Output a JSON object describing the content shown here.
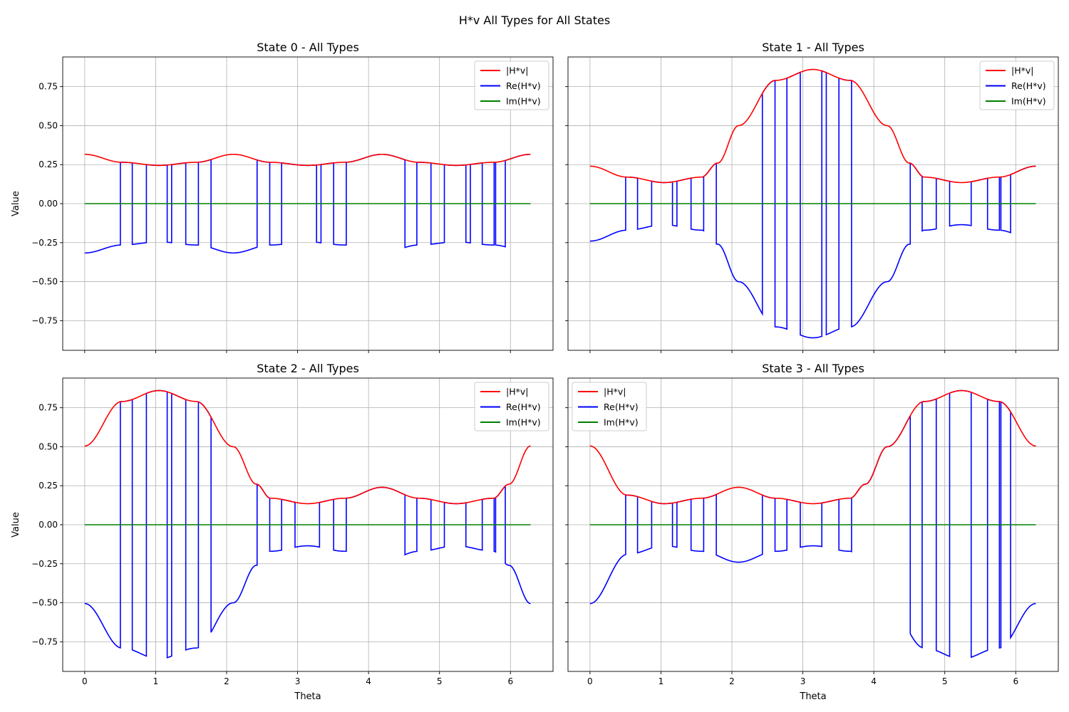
{
  "figure": {
    "title": "H*v All Types for All States"
  },
  "legend_swatch_colors": [
    "#ff0000",
    "#0000ff",
    "#008000"
  ],
  "chart_data": [
    {
      "type": "line",
      "title": "State 0 - All Types",
      "xlabel": "",
      "ylabel": "Value",
      "xlim": [
        -0.31,
        6.6
      ],
      "ylim": [
        -0.94,
        0.94
      ],
      "xticks": [
        0,
        1,
        2,
        3,
        4,
        5,
        6
      ],
      "yticks": [
        -0.75,
        -0.5,
        -0.25,
        0.0,
        0.25,
        0.5,
        0.75
      ],
      "xtick_labels_visible": false,
      "ytick_labels_visible": true,
      "grid": true,
      "legend": "top-right",
      "abs_peaks": [
        [
          0,
          0.316
        ],
        [
          0.524,
          0.265
        ],
        [
          1.047,
          0.245
        ],
        [
          1.571,
          0.265
        ],
        [
          2.094,
          0.316
        ],
        [
          2.618,
          0.265
        ],
        [
          3.142,
          0.245
        ],
        [
          3.665,
          0.265
        ],
        [
          4.189,
          0.316
        ],
        [
          4.712,
          0.265
        ],
        [
          5.236,
          0.245
        ],
        [
          5.76,
          0.265
        ],
        [
          6.283,
          0.316
        ]
      ],
      "sign_flip_theta": [
        0.5,
        0.67,
        0.86,
        1.16,
        1.22,
        1.42,
        1.6,
        1.78,
        2.42,
        2.6,
        2.77,
        3.26,
        3.32,
        3.5,
        3.68,
        4.51,
        4.68,
        4.87,
        5.06,
        5.37,
        5.43,
        5.6,
        5.77,
        5.79,
        5.92
      ],
      "series": [
        {
          "name": "|H*v|",
          "color": "#ff0000"
        },
        {
          "name": "Re(H*v)",
          "color": "#0000ff"
        },
        {
          "name": "Im(H*v)",
          "color": "#008000"
        }
      ]
    },
    {
      "type": "line",
      "title": "State 1 - All Types",
      "xlabel": "",
      "ylabel": "",
      "xlim": [
        -0.31,
        6.6
      ],
      "ylim": [
        -0.94,
        0.94
      ],
      "xticks": [
        0,
        1,
        2,
        3,
        4,
        5,
        6
      ],
      "yticks": [
        -0.75,
        -0.5,
        -0.25,
        0.0,
        0.25,
        0.5,
        0.75
      ],
      "xtick_labels_visible": false,
      "ytick_labels_visible": false,
      "grid": true,
      "legend": "top-right",
      "abs_peaks": [
        [
          0,
          0.24
        ],
        [
          0.524,
          0.17
        ],
        [
          1.047,
          0.135
        ],
        [
          1.571,
          0.17
        ],
        [
          1.8,
          0.26
        ],
        [
          2.094,
          0.5
        ],
        [
          2.618,
          0.79
        ],
        [
          3.142,
          0.86
        ],
        [
          3.665,
          0.79
        ],
        [
          4.189,
          0.5
        ],
        [
          4.5,
          0.26
        ],
        [
          4.712,
          0.17
        ],
        [
          5.236,
          0.135
        ],
        [
          5.76,
          0.17
        ],
        [
          6.283,
          0.24
        ]
      ],
      "sign_flip_theta": [
        0.5,
        0.67,
        0.86,
        1.16,
        1.22,
        1.42,
        1.6,
        1.78,
        2.42,
        2.6,
        2.77,
        2.96,
        3.26,
        3.32,
        3.5,
        3.68,
        4.51,
        4.68,
        4.87,
        5.06,
        5.37,
        5.6,
        5.77,
        5.79,
        5.92
      ],
      "series": [
        {
          "name": "|H*v|",
          "color": "#ff0000"
        },
        {
          "name": "Re(H*v)",
          "color": "#0000ff"
        },
        {
          "name": "Im(H*v)",
          "color": "#008000"
        }
      ]
    },
    {
      "type": "line",
      "title": "State 2 - All Types",
      "xlabel": "Theta",
      "ylabel": "Value",
      "xlim": [
        -0.31,
        6.6
      ],
      "ylim": [
        -0.94,
        0.94
      ],
      "xticks": [
        0,
        1,
        2,
        3,
        4,
        5,
        6
      ],
      "yticks": [
        -0.75,
        -0.5,
        -0.25,
        0.0,
        0.25,
        0.5,
        0.75
      ],
      "xtick_labels_visible": true,
      "ytick_labels_visible": true,
      "grid": true,
      "legend": "top-right",
      "abs_peaks": [
        [
          0,
          0.505
        ],
        [
          0.524,
          0.79
        ],
        [
          1.047,
          0.86
        ],
        [
          1.571,
          0.79
        ],
        [
          2.094,
          0.5
        ],
        [
          2.42,
          0.26
        ],
        [
          2.618,
          0.17
        ],
        [
          3.142,
          0.135
        ],
        [
          3.665,
          0.17
        ],
        [
          4.189,
          0.24
        ],
        [
          4.712,
          0.17
        ],
        [
          5.236,
          0.135
        ],
        [
          5.76,
          0.17
        ],
        [
          5.98,
          0.26
        ],
        [
          6.283,
          0.505
        ]
      ],
      "sign_flip_theta": [
        0.5,
        0.67,
        0.86,
        1.16,
        1.22,
        1.42,
        1.6,
        1.78,
        2.42,
        2.6,
        2.77,
        2.96,
        3.3,
        3.5,
        3.68,
        4.51,
        4.68,
        4.87,
        5.06,
        5.37,
        5.6,
        5.77,
        5.79,
        5.92
      ],
      "series": [
        {
          "name": "|H*v|",
          "color": "#ff0000"
        },
        {
          "name": "Re(H*v)",
          "color": "#0000ff"
        },
        {
          "name": "Im(H*v)",
          "color": "#008000"
        }
      ]
    },
    {
      "type": "line",
      "title": "State 3 - All Types",
      "xlabel": "Theta",
      "ylabel": "",
      "xlim": [
        -0.31,
        6.6
      ],
      "ylim": [
        -0.94,
        0.94
      ],
      "xticks": [
        0,
        1,
        2,
        3,
        4,
        5,
        6
      ],
      "yticks": [
        -0.75,
        -0.5,
        -0.25,
        0.0,
        0.25,
        0.5,
        0.75
      ],
      "xtick_labels_visible": true,
      "ytick_labels_visible": false,
      "grid": true,
      "legend": "top-left",
      "abs_peaks": [
        [
          0,
          0.505
        ],
        [
          0.524,
          0.19
        ],
        [
          1.047,
          0.135
        ],
        [
          1.571,
          0.17
        ],
        [
          2.094,
          0.24
        ],
        [
          2.618,
          0.17
        ],
        [
          3.142,
          0.135
        ],
        [
          3.665,
          0.17
        ],
        [
          3.88,
          0.26
        ],
        [
          4.189,
          0.5
        ],
        [
          4.712,
          0.79
        ],
        [
          5.236,
          0.86
        ],
        [
          5.76,
          0.79
        ],
        [
          6.283,
          0.505
        ]
      ],
      "sign_flip_theta": [
        0.5,
        0.67,
        0.86,
        1.16,
        1.22,
        1.42,
        1.6,
        1.78,
        2.42,
        2.6,
        2.77,
        2.96,
        3.26,
        3.5,
        3.68,
        4.51,
        4.68,
        4.87,
        5.06,
        5.37,
        5.6,
        5.77,
        5.79,
        5.92
      ],
      "series": [
        {
          "name": "|H*v|",
          "color": "#ff0000"
        },
        {
          "name": "Re(H*v)",
          "color": "#0000ff"
        },
        {
          "name": "Im(H*v)",
          "color": "#008000"
        }
      ]
    }
  ]
}
